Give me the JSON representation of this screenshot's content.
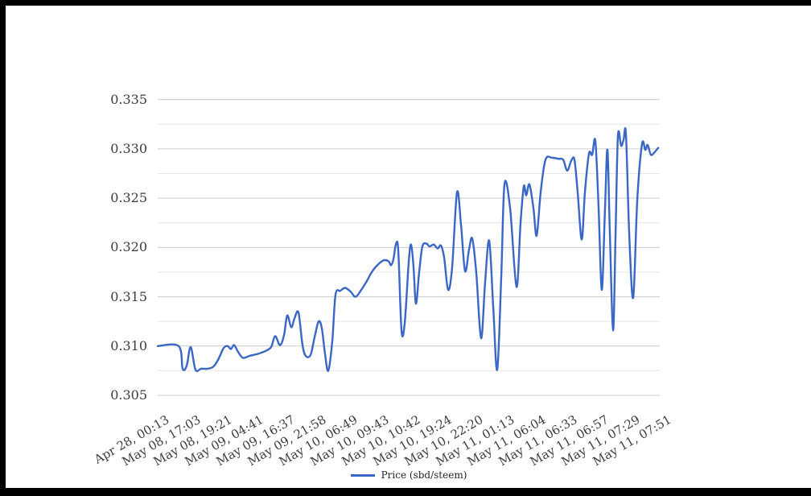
{
  "chart_data": {
    "type": "line",
    "title": "",
    "legend": "Price (sbd/steem)",
    "legend_position": "bottom-center",
    "line_color": "#3a67c5",
    "grid_major_color": "#cccccc",
    "grid_minor_color": "#e7e7e7",
    "label_color": "#3d3d3d",
    "frame_color": "#000000",
    "background_color": "#ffffff",
    "ylim": [
      0.305,
      0.335
    ],
    "y_major_step": 0.005,
    "y_minor_step": 0.0025,
    "grid": true,
    "y_tick_labels": [
      "0.305",
      "0.310",
      "0.315",
      "0.320",
      "0.325",
      "0.330",
      "0.335"
    ],
    "x_tick_labels": [
      "Apr 28, 00:13",
      "May 08, 17:03",
      "May 08, 19:21",
      "May 09, 04:41",
      "May 09, 16:37",
      "May 09, 21:58",
      "May 10, 06:49",
      "May 10, 09:43",
      "May 10, 10:42",
      "May 10, 19:24",
      "May 10, 22:20",
      "May 11, 01:13",
      "May 11, 06:04",
      "May 11, 06:33",
      "May 11, 06:57",
      "May 11, 07:29",
      "May 11, 07:51"
    ],
    "series": [
      {
        "name": "Price (sbd/steem)",
        "color": "#3a67c5",
        "points": [
          [
            0.0,
            0.31
          ],
          [
            0.0417,
            0.31
          ],
          [
            0.0497,
            0.3077
          ],
          [
            0.0577,
            0.308
          ],
          [
            0.0657,
            0.3099
          ],
          [
            0.0753,
            0.3076
          ],
          [
            0.0865,
            0.3077
          ],
          [
            0.0994,
            0.3077
          ],
          [
            0.1106,
            0.3079
          ],
          [
            0.1202,
            0.3086
          ],
          [
            0.1314,
            0.3098
          ],
          [
            0.1394,
            0.31
          ],
          [
            0.1458,
            0.3097
          ],
          [
            0.1522,
            0.3101
          ],
          [
            0.1603,
            0.3094
          ],
          [
            0.1699,
            0.3088
          ],
          [
            0.1827,
            0.309
          ],
          [
            0.1987,
            0.3092
          ],
          [
            0.2147,
            0.3095
          ],
          [
            0.226,
            0.3099
          ],
          [
            0.234,
            0.311
          ],
          [
            0.2436,
            0.3101
          ],
          [
            0.2516,
            0.3111
          ],
          [
            0.258,
            0.3131
          ],
          [
            0.266,
            0.3119
          ],
          [
            0.2724,
            0.3128
          ],
          [
            0.2804,
            0.3134
          ],
          [
            0.2885,
            0.3101
          ],
          [
            0.2949,
            0.309
          ],
          [
            0.3045,
            0.3091
          ],
          [
            0.3125,
            0.3109
          ],
          [
            0.3205,
            0.3125
          ],
          [
            0.3269,
            0.3118
          ],
          [
            0.3333,
            0.3092
          ],
          [
            0.3397,
            0.3075
          ],
          [
            0.3478,
            0.3105
          ],
          [
            0.3542,
            0.3152
          ],
          [
            0.3638,
            0.3156
          ],
          [
            0.3734,
            0.3159
          ],
          [
            0.3846,
            0.3155
          ],
          [
            0.3942,
            0.315
          ],
          [
            0.4054,
            0.3157
          ],
          [
            0.4167,
            0.3166
          ],
          [
            0.4263,
            0.3175
          ],
          [
            0.4375,
            0.3182
          ],
          [
            0.4503,
            0.3187
          ],
          [
            0.4599,
            0.3186
          ],
          [
            0.4647,
            0.3182
          ],
          [
            0.4696,
            0.3188
          ],
          [
            0.4744,
            0.3203
          ],
          [
            0.4792,
            0.3197
          ],
          [
            0.4856,
            0.3116
          ],
          [
            0.492,
            0.3123
          ],
          [
            0.5,
            0.3185
          ],
          [
            0.5048,
            0.3203
          ],
          [
            0.5096,
            0.318
          ],
          [
            0.5144,
            0.3143
          ],
          [
            0.5208,
            0.3175
          ],
          [
            0.5272,
            0.3201
          ],
          [
            0.5353,
            0.3204
          ],
          [
            0.5417,
            0.3201
          ],
          [
            0.5497,
            0.3203
          ],
          [
            0.5577,
            0.3199
          ],
          [
            0.5641,
            0.3202
          ],
          [
            0.5705,
            0.319
          ],
          [
            0.5785,
            0.3157
          ],
          [
            0.5865,
            0.318
          ],
          [
            0.5962,
            0.3256
          ],
          [
            0.6042,
            0.3223
          ],
          [
            0.6122,
            0.3176
          ],
          [
            0.6202,
            0.3198
          ],
          [
            0.6266,
            0.3209
          ],
          [
            0.6346,
            0.3174
          ],
          [
            0.6442,
            0.3108
          ],
          [
            0.6522,
            0.3165
          ],
          [
            0.6603,
            0.3207
          ],
          [
            0.6683,
            0.314
          ],
          [
            0.6763,
            0.3076
          ],
          [
            0.6843,
            0.317
          ],
          [
            0.6907,
            0.3264
          ],
          [
            0.7019,
            0.324
          ],
          [
            0.7147,
            0.316
          ],
          [
            0.7228,
            0.3225
          ],
          [
            0.7292,
            0.3262
          ],
          [
            0.734,
            0.3253
          ],
          [
            0.7404,
            0.3264
          ],
          [
            0.7484,
            0.324
          ],
          [
            0.7548,
            0.3212
          ],
          [
            0.7628,
            0.3256
          ],
          [
            0.7724,
            0.3289
          ],
          [
            0.7853,
            0.3291
          ],
          [
            0.7981,
            0.329
          ],
          [
            0.8077,
            0.3289
          ],
          [
            0.8157,
            0.3278
          ],
          [
            0.8237,
            0.3288
          ],
          [
            0.8301,
            0.3289
          ],
          [
            0.8365,
            0.3256
          ],
          [
            0.8446,
            0.3208
          ],
          [
            0.851,
            0.3256
          ],
          [
            0.859,
            0.3295
          ],
          [
            0.8654,
            0.3294
          ],
          [
            0.8718,
            0.3308
          ],
          [
            0.8782,
            0.324
          ],
          [
            0.8846,
            0.3157
          ],
          [
            0.891,
            0.324
          ],
          [
            0.8958,
            0.3299
          ],
          [
            0.9006,
            0.3215
          ],
          [
            0.9071,
            0.3116
          ],
          [
            0.9119,
            0.321
          ],
          [
            0.9167,
            0.3313
          ],
          [
            0.9231,
            0.3303
          ],
          [
            0.9279,
            0.3309
          ],
          [
            0.9327,
            0.3315
          ],
          [
            0.9391,
            0.3215
          ],
          [
            0.9471,
            0.3149
          ],
          [
            0.9551,
            0.3247
          ],
          [
            0.9647,
            0.3305
          ],
          [
            0.9712,
            0.3299
          ],
          [
            0.976,
            0.3304
          ],
          [
            0.9824,
            0.3294
          ],
          [
            0.9904,
            0.3297
          ],
          [
            0.9968,
            0.3301
          ]
        ]
      }
    ]
  }
}
